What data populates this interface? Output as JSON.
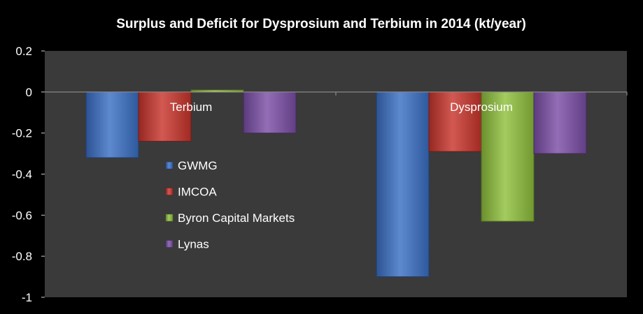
{
  "chart_data": {
    "type": "bar",
    "title": "Surplus and Deficit for Dysprosium and Terbium in 2014 (kt/year)",
    "xlabel": "",
    "ylabel": "",
    "ylim": [
      -1,
      0.2
    ],
    "yticks": [
      0.2,
      0,
      -0.2,
      -0.4,
      -0.6,
      -0.8,
      -1
    ],
    "ytick_labels": [
      "0.2",
      "0",
      "-0.2",
      "-0.4",
      "-0.6",
      "-0.8",
      "-1"
    ],
    "categories": [
      "Terbium",
      "Dysprosium"
    ],
    "series": [
      {
        "name": "GWMG",
        "values": [
          -0.32,
          -0.9
        ],
        "color": "#3a6fc4"
      },
      {
        "name": "IMCOA",
        "values": [
          -0.24,
          -0.29
        ],
        "color": "#c8342c"
      },
      {
        "name": "Byron Capital Markets",
        "values": [
          0.01,
          -0.63
        ],
        "color": "#8fbf3c"
      },
      {
        "name": "Lynas",
        "values": [
          -0.2,
          -0.3
        ],
        "color": "#7b4ea6"
      }
    ],
    "grid": false,
    "legend_position": "inside, center-left",
    "colors": {
      "background": "#000000",
      "plot_area": "#3a3a3a",
      "text": "#ffffff"
    }
  }
}
